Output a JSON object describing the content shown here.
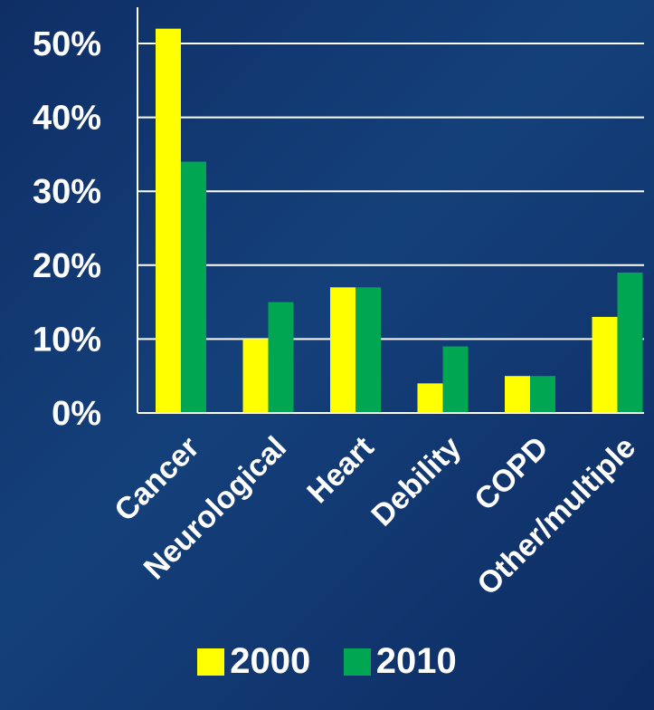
{
  "chart_data": {
    "type": "bar",
    "categories": [
      "Cancer",
      "Neurological",
      "Heart",
      "Debility",
      "COPD",
      "Other/multiple"
    ],
    "series": [
      {
        "name": "2000",
        "color": "#ffff00",
        "values": [
          52,
          10,
          17,
          4,
          5,
          13
        ]
      },
      {
        "name": "2010",
        "color": "#00a651",
        "values": [
          34,
          15,
          17,
          9,
          5,
          19
        ]
      }
    ],
    "yticks": [
      "0%",
      "10%",
      "20%",
      "30%",
      "40%",
      "50%"
    ],
    "ylim": [
      0,
      50
    ],
    "grid": true,
    "legend_position": "bottom"
  }
}
